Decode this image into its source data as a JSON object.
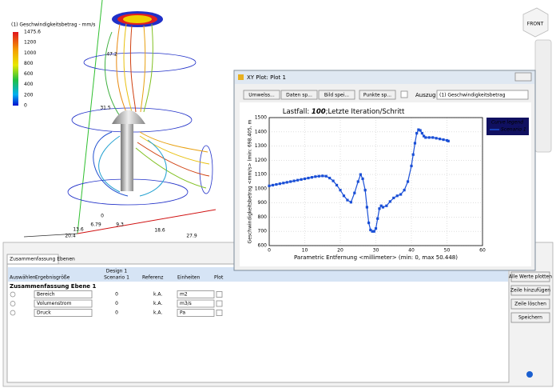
{
  "viewport": {
    "legend_title": "(1) Geschwindigkeitsbetrag - mm/s",
    "legend_labels": [
      "1475.6",
      "1200",
      "1000",
      "800",
      "600",
      "400",
      "200",
      "0"
    ],
    "axis_labels": [
      "47.2",
      "31.5",
      "0",
      "6.79",
      "9.3",
      "13.6",
      "20.4",
      "18.6",
      "27.9"
    ],
    "view_cube": "FRONT"
  },
  "dialog": {
    "title": "XY Plot: Plot 1",
    "buttons": [
      "Umwelss...",
      "Daten sp...",
      "Bild spei...",
      "Punkte sp..."
    ],
    "auszug_label": "Auszug",
    "auszug_value": "(1) Geschwindigkeitsbetrag"
  },
  "chart_data": {
    "type": "line",
    "title": {
      "prefix": "Lastfall: ",
      "bold": "100",
      "suffix": ";Letzte Iteration/Schritt"
    },
    "xlabel": "Parametric Entfernung <millimeter> (min: 0, max 50.448)",
    "ylabel": "Geschwindigkeitsbetrag <mm/s> (min: 698.405, m",
    "legend_title": "Curve legend",
    "legend": "upper right",
    "grid": true,
    "xlim": [
      0,
      60
    ],
    "ylim": [
      600,
      1500
    ],
    "xticks": [
      0,
      10,
      20,
      30,
      40,
      50,
      60
    ],
    "yticks": [
      600,
      700,
      800,
      900,
      1000,
      1100,
      1200,
      1300,
      1400,
      1500
    ],
    "x": [
      0,
      1,
      2,
      3,
      4,
      5,
      6,
      7,
      8,
      9,
      10,
      11,
      12,
      13,
      14,
      15,
      16,
      17,
      18,
      19,
      20,
      21,
      22,
      23,
      24,
      25,
      25.7,
      26.3,
      27,
      27.5,
      28,
      28.5,
      29,
      29.5,
      30,
      30.5,
      31,
      31.5,
      32,
      33,
      34,
      35,
      36,
      37,
      38,
      39,
      40,
      40.5,
      41,
      41.5,
      42,
      42.5,
      43,
      43.5,
      44,
      45,
      46,
      47,
      48,
      49,
      50,
      50.4
    ],
    "series": [
      {
        "name": "Scenario 1",
        "color": "#1a4fd6",
        "values": [
          1020,
          1025,
          1030,
          1035,
          1040,
          1045,
          1050,
          1055,
          1060,
          1065,
          1070,
          1075,
          1080,
          1085,
          1088,
          1090,
          1088,
          1075,
          1055,
          1025,
          990,
          950,
          920,
          905,
          970,
          1050,
          1100,
          1070,
          990,
          870,
          760,
          710,
          700,
          700,
          720,
          790,
          860,
          880,
          870,
          880,
          910,
          935,
          950,
          960,
          990,
          1050,
          1160,
          1240,
          1320,
          1390,
          1415,
          1410,
          1390,
          1370,
          1360,
          1360,
          1360,
          1355,
          1350,
          1345,
          1340,
          1335
        ]
      }
    ]
  },
  "panel": {
    "tab": "Zusammenfassung Ebenen",
    "headers": [
      "Auswählen",
      "Ergebnisgröße",
      "Design 1",
      "Scenario 1",
      "Referenz",
      "Einheiten",
      "Plot"
    ],
    "group": "Zusammenfassung Ebene 1",
    "rows": [
      [
        "Bereich",
        "0",
        "k.A.",
        "m2"
      ],
      [
        "Volumenstrom",
        "0",
        "k.A.",
        "m3/s"
      ],
      [
        "Druck",
        "0",
        "k.A.",
        "Pa"
      ]
    ],
    "buttons": [
      "Alle Werte plotten",
      "Zeile hinzufügen",
      "Zeile löschen",
      "Speichern"
    ]
  }
}
